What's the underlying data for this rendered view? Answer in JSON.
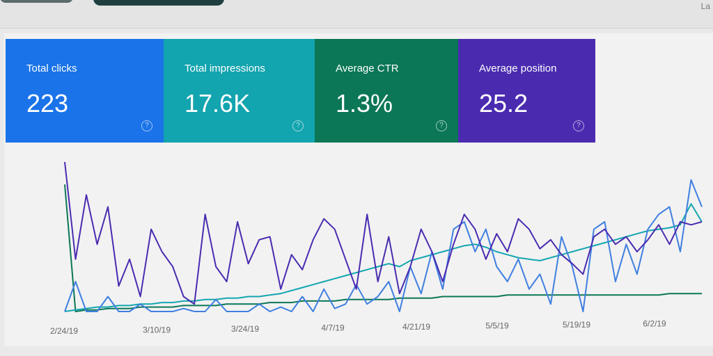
{
  "header": {
    "corner_text": "La"
  },
  "cards": [
    {
      "label": "Total clicks",
      "value": "223",
      "color": "#1a73e8"
    },
    {
      "label": "Total impressions",
      "value": "17.6K",
      "color": "#12a4af"
    },
    {
      "label": "Average CTR",
      "value": "1.3%",
      "color": "#0b7757"
    },
    {
      "label": "Average position",
      "value": "25.2",
      "color": "#4a2bb0"
    }
  ],
  "help_icon": "?",
  "chart_data": {
    "type": "line",
    "title": "",
    "xlabel": "",
    "ylabel": "",
    "x_ticks": [
      "2/24/19",
      "3/10/19",
      "3/24/19",
      "4/7/19",
      "4/21/19",
      "5/5/19",
      "5/19/19",
      "6/2/19"
    ],
    "ylim": [
      0,
      100
    ],
    "grid": false,
    "series": [
      {
        "name": "Average position",
        "color": "#4a2bb0",
        "values": [
          100,
          35,
          78,
          45,
          70,
          17,
          35,
          10,
          55,
          40,
          30,
          10,
          5,
          65,
          30,
          20,
          60,
          32,
          48,
          50,
          15,
          38,
          28,
          48,
          62,
          55,
          35,
          15,
          65,
          20,
          50,
          12,
          30,
          55,
          40,
          20,
          45,
          65,
          55,
          35,
          52,
          40,
          62,
          55,
          42,
          48,
          38,
          32,
          25,
          50,
          55,
          45,
          50,
          40,
          48,
          58,
          45,
          60,
          58,
          60
        ]
      },
      {
        "name": "Total clicks",
        "color": "#3f7fe0",
        "values": [
          0,
          20,
          0,
          0,
          10,
          0,
          0,
          5,
          0,
          0,
          0,
          2,
          0,
          0,
          8,
          0,
          0,
          0,
          5,
          0,
          3,
          0,
          10,
          0,
          15,
          2,
          5,
          18,
          5,
          10,
          20,
          0,
          30,
          12,
          40,
          15,
          55,
          60,
          40,
          55,
          30,
          20,
          35,
          15,
          25,
          5,
          50,
          30,
          0,
          55,
          60,
          20,
          45,
          25,
          55,
          65,
          70,
          40,
          88,
          70
        ]
      },
      {
        "name": "Total impressions",
        "color": "#14a6b0",
        "values": [
          0,
          1,
          2,
          3,
          3,
          4,
          4,
          5,
          5,
          6,
          6,
          7,
          7,
          8,
          8,
          9,
          9,
          10,
          10,
          11,
          12,
          14,
          16,
          18,
          20,
          22,
          24,
          26,
          28,
          30,
          32,
          30,
          34,
          36,
          38,
          40,
          42,
          44,
          45,
          43,
          40,
          38,
          36,
          35,
          34,
          36,
          38,
          40,
          42,
          44,
          46,
          48,
          50,
          52,
          54,
          55,
          56,
          58,
          72,
          60
        ]
      },
      {
        "name": "Average CTR",
        "color": "#0b7757",
        "values": [
          85,
          0,
          1,
          1,
          2,
          2,
          2,
          3,
          3,
          3,
          3,
          4,
          4,
          4,
          4,
          5,
          5,
          5,
          5,
          6,
          6,
          6,
          7,
          7,
          7,
          7,
          8,
          8,
          8,
          8,
          8,
          9,
          9,
          9,
          9,
          10,
          10,
          10,
          10,
          10,
          10,
          11,
          11,
          11,
          11,
          11,
          11,
          11,
          11,
          11,
          11,
          11,
          11,
          11,
          11,
          11,
          12,
          12,
          12,
          12
        ]
      }
    ]
  }
}
